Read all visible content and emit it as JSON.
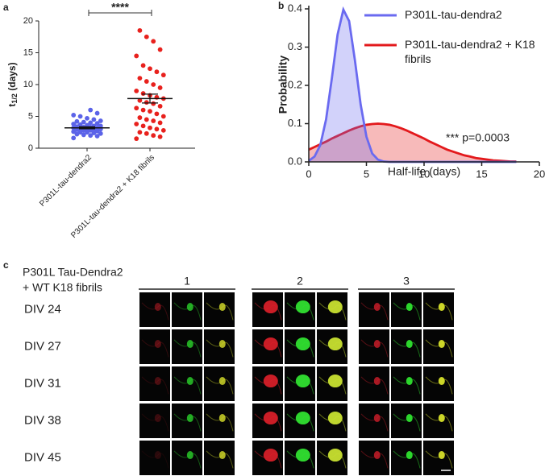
{
  "panel_labels": [
    "a",
    "b",
    "c"
  ],
  "chart_data": [
    {
      "type": "dotplot",
      "y_label": "t",
      "y_label_sub": "1/2",
      "y_label_suffix": " (days)",
      "categories": [
        "P301L-tau-dendra2",
        "P301L-tau-dendra2 + K18 fibrils"
      ],
      "groups": [
        {
          "color": "#5b63e8",
          "mean": 3.2,
          "sem": 0.15,
          "values": [
            1.6,
            1.9,
            2.0,
            2.1,
            2.2,
            2.3,
            2.4,
            2.5,
            2.5,
            2.6,
            2.7,
            2.8,
            2.8,
            2.9,
            3.0,
            3.0,
            3.1,
            3.1,
            3.2,
            3.2,
            3.3,
            3.3,
            3.4,
            3.5,
            3.5,
            3.6,
            3.7,
            3.8,
            3.9,
            4.0,
            4.1,
            4.2,
            4.3,
            4.5,
            4.7,
            5.0,
            5.2,
            5.5,
            6.0
          ]
        },
        {
          "color": "#e8211d",
          "mean": 7.8,
          "sem": 0.7,
          "values": [
            1.5,
            1.8,
            2.0,
            2.3,
            2.5,
            2.8,
            3.0,
            3.2,
            3.5,
            3.8,
            4.0,
            4.3,
            4.5,
            4.8,
            5.0,
            5.4,
            5.8,
            6.0,
            6.3,
            6.6,
            7.0,
            7.2,
            7.5,
            7.8,
            8.0,
            8.3,
            8.6,
            9.0,
            9.5,
            10.0,
            10.5,
            11.0,
            11.5,
            12.0,
            12.5,
            13.0,
            14.5,
            15.5,
            16.8,
            17.5,
            18.5
          ]
        }
      ],
      "significance": "****",
      "ylim": [
        0,
        20
      ],
      "yticks": [
        0,
        5,
        10,
        15,
        20
      ]
    },
    {
      "type": "area",
      "x_label": "Half-life (days)",
      "y_label": "Probability",
      "x": [
        0,
        0.5,
        1,
        1.5,
        2,
        2.5,
        3,
        3.5,
        4,
        4.5,
        5,
        5.5,
        6,
        6.5,
        7,
        7.5,
        8,
        8.5,
        9,
        9.5,
        10,
        10.5,
        11,
        11.5,
        12,
        12.5,
        13,
        13.5,
        14,
        14.5,
        15,
        15.5,
        16,
        16.5,
        17,
        17.5,
        18
      ],
      "series": [
        {
          "name": "P301L-tau-dendra2",
          "color": "#6a6af0",
          "values": [
            0.003,
            0.014,
            0.044,
            0.111,
            0.218,
            0.333,
            0.398,
            0.368,
            0.266,
            0.15,
            0.066,
            0.022,
            0.006,
            0.001,
            0,
            0,
            0,
            0,
            0,
            0,
            0,
            0,
            0,
            0,
            0,
            0,
            0,
            0,
            0,
            0,
            0,
            0,
            0,
            0,
            0,
            0,
            0
          ]
        },
        {
          "name": "P301L-tau-dendra2 + K18 fibrils",
          "color": "#e3191c",
          "values": [
            0.032,
            0.039,
            0.046,
            0.053,
            0.061,
            0.068,
            0.075,
            0.082,
            0.088,
            0.093,
            0.097,
            0.099,
            0.1,
            0.099,
            0.097,
            0.093,
            0.088,
            0.082,
            0.075,
            0.068,
            0.061,
            0.053,
            0.046,
            0.039,
            0.032,
            0.027,
            0.022,
            0.017,
            0.014,
            0.01,
            0.008,
            0.006,
            0.004,
            0.003,
            0.002,
            0.001,
            0.001
          ]
        }
      ],
      "annotation": "*** p=0.0003",
      "xlim": [
        0,
        20
      ],
      "xticks": [
        0,
        5,
        10,
        15,
        20
      ],
      "ylim": [
        0,
        0.4
      ],
      "yticks": [
        {
          "value": 0,
          "label": "0.0"
        },
        0.1,
        0.2,
        0.3,
        0.4
      ]
    }
  ],
  "panel_c": {
    "title_lines": [
      "P301L Tau-Dendra2",
      "+ WT K18 fibrils"
    ],
    "groups": [
      "1",
      "2",
      "3"
    ],
    "rows": [
      "DIV 24",
      "DIV 27",
      "DIV 31",
      "DIV 38",
      "DIV 45"
    ]
  }
}
